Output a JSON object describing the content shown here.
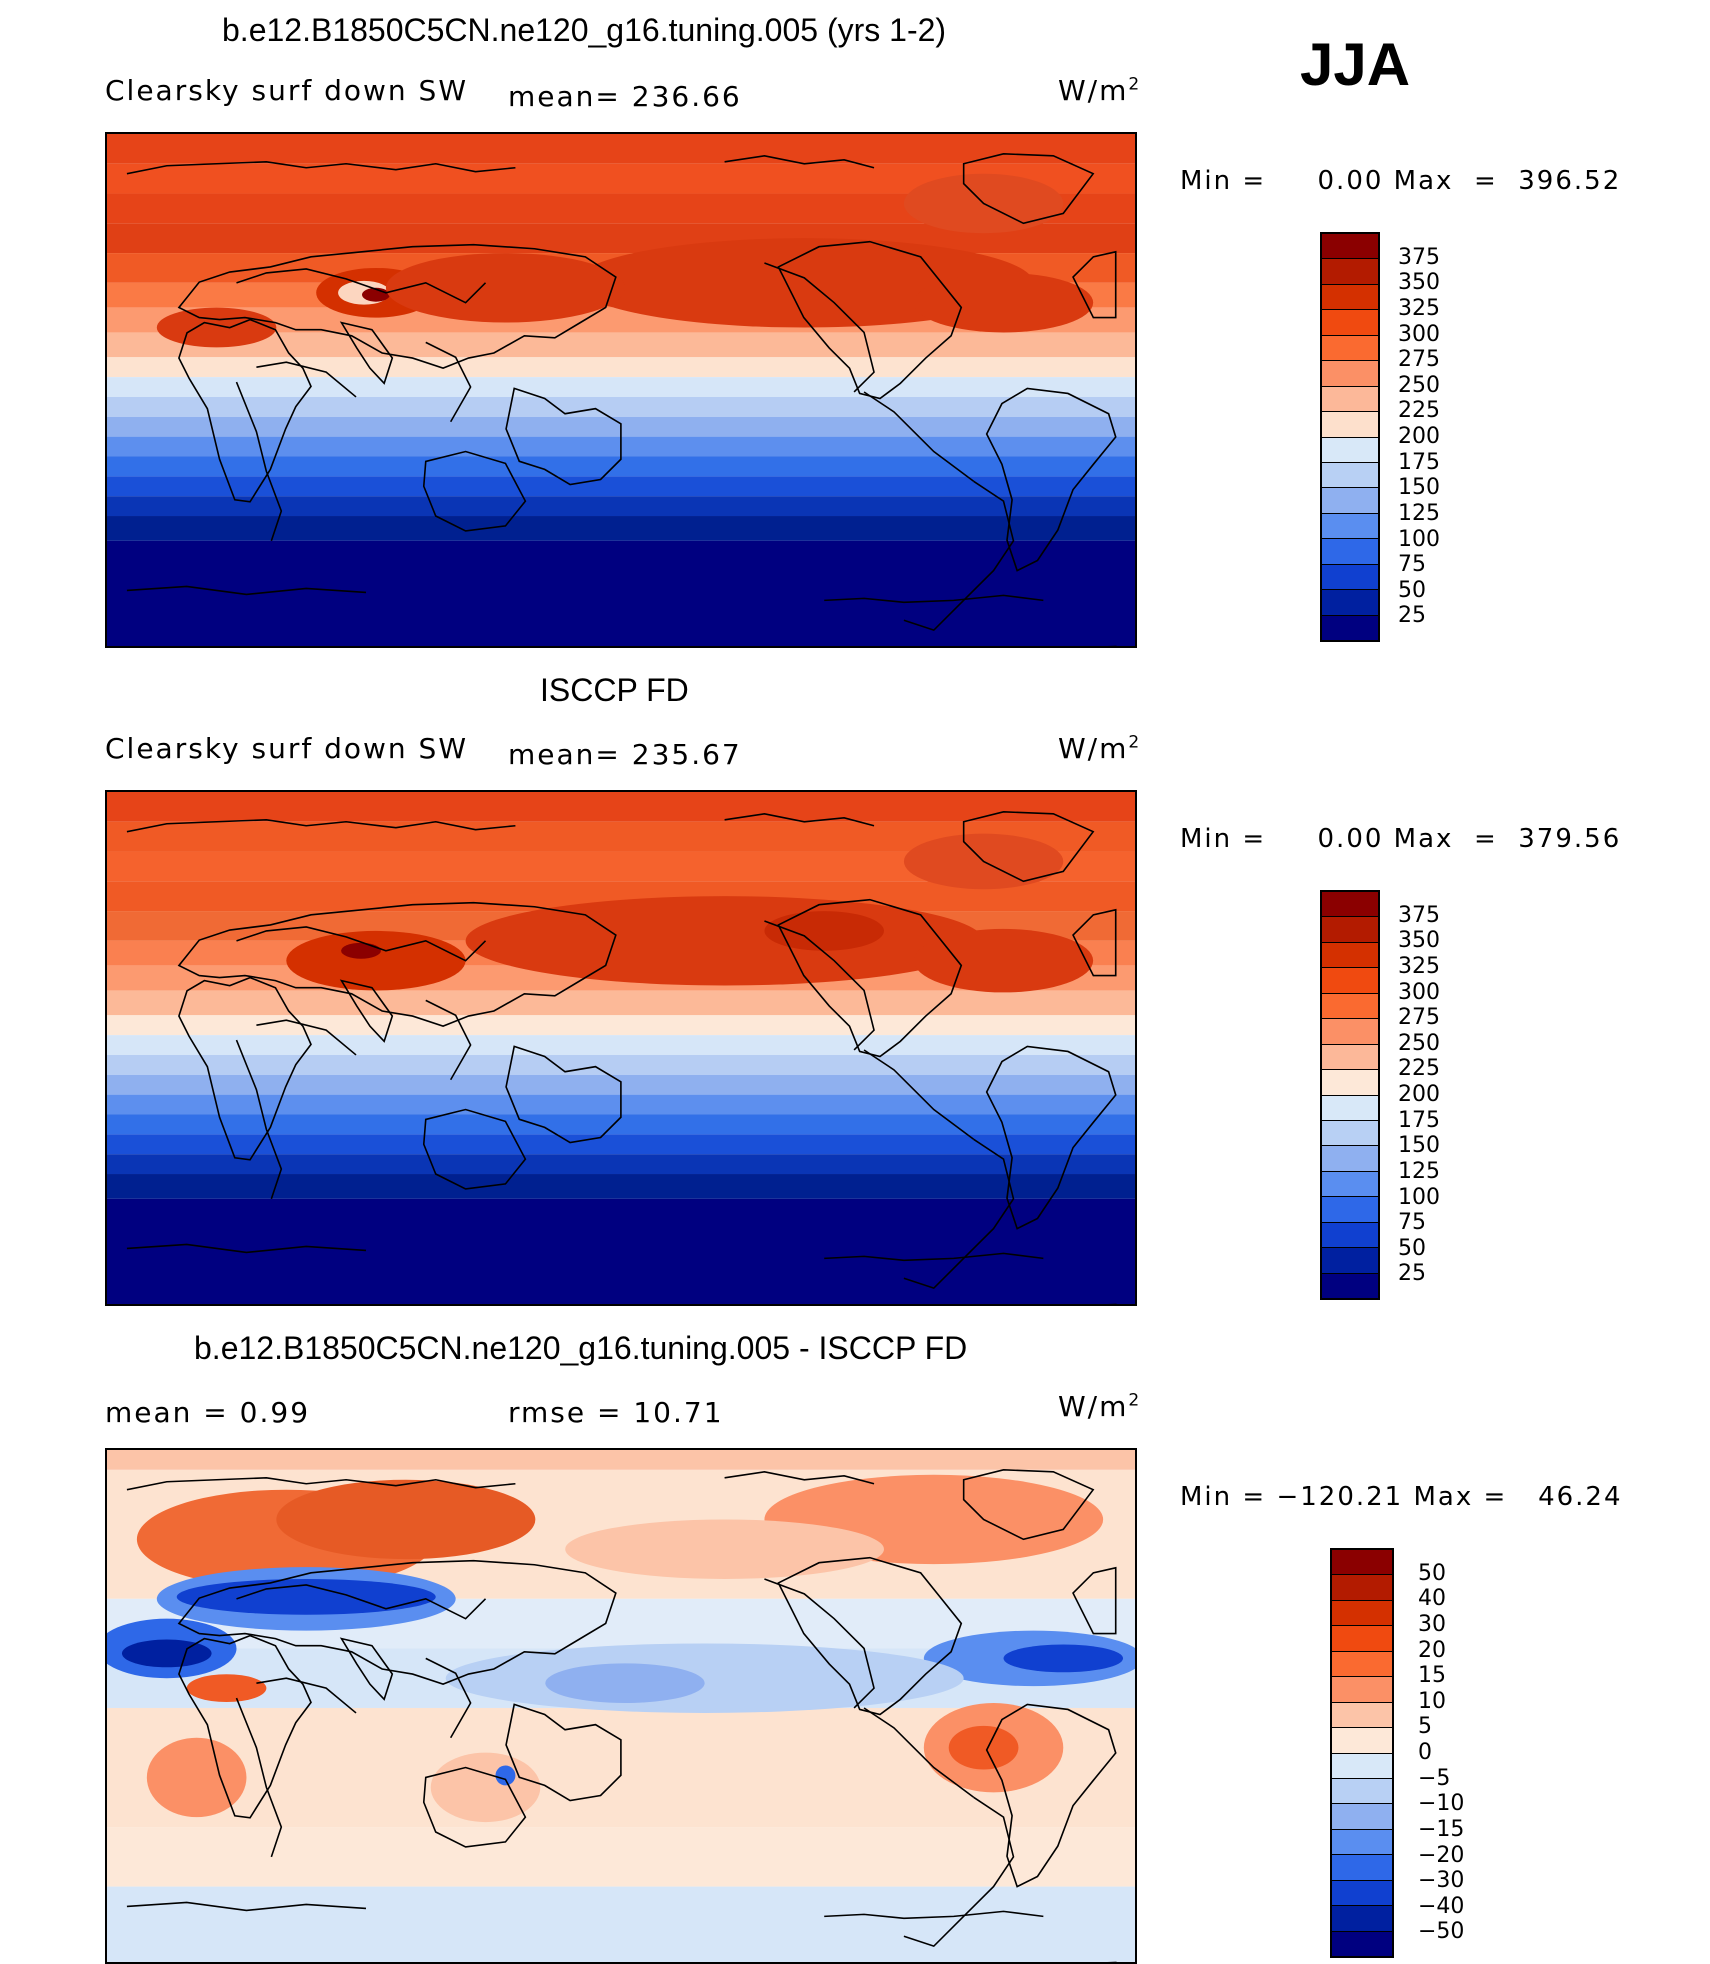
{
  "season": "JJA",
  "panels": [
    {
      "title": "b.e12.B1850C5CN.ne120_g16.tuning.005 (yrs 1-2)",
      "left_label": "Clearsky surf down SW",
      "stat_label": "mean= 236.66",
      "units": "W/m",
      "units_sup": "2",
      "minmax": "Min =     0.00 Max  =  396.52",
      "colorbar_labels": [
        "375",
        "350",
        "325",
        "300",
        "275",
        "250",
        "225",
        "200",
        "175",
        "150",
        "125",
        "100",
        "75",
        "50",
        "25"
      ],
      "colorbar_colors": [
        "#8b0000",
        "#b31b00",
        "#d43000",
        "#f04a10",
        "#fa6a30",
        "#fb9066",
        "#fcb899",
        "#fde0cc",
        "#d8e8f8",
        "#b8d0f4",
        "#8fb0f0",
        "#5a8ef0",
        "#2e68e8",
        "#1040d0",
        "#0020a0",
        "#000080"
      ]
    },
    {
      "title": "ISCCP FD",
      "left_label": "Clearsky surf down SW",
      "stat_label": "mean= 235.67",
      "units": "W/m",
      "units_sup": "2",
      "minmax": "Min =     0.00 Max  =  379.56",
      "colorbar_labels": [
        "375",
        "350",
        "325",
        "300",
        "275",
        "250",
        "225",
        "200",
        "175",
        "150",
        "125",
        "100",
        "75",
        "50",
        "25"
      ],
      "colorbar_colors": [
        "#8b0000",
        "#b31b00",
        "#d43000",
        "#f04a10",
        "#fa6a30",
        "#fb9066",
        "#fcb899",
        "#fde8d8",
        "#d8e8f8",
        "#b8d0f4",
        "#8fb0f0",
        "#5a8ef0",
        "#2e68e8",
        "#1040d0",
        "#0020a0",
        "#000080"
      ]
    },
    {
      "title": "b.e12.B1850C5CN.ne120_g16.tuning.005 - ISCCP FD",
      "left_label": "mean =    0.99",
      "stat_label": "rmse =    10.71",
      "units": "W/m",
      "units_sup": "2",
      "minmax": "Min = −120.21 Max =   46.24",
      "colorbar_labels": [
        "50",
        "40",
        "30",
        "20",
        "15",
        "10",
        "5",
        "0",
        "−5",
        "−10",
        "−15",
        "−20",
        "−30",
        "−40",
        "−50"
      ],
      "colorbar_colors": [
        "#8b0000",
        "#b31b00",
        "#d43000",
        "#f04a10",
        "#fa6a30",
        "#fb9066",
        "#fcc4a8",
        "#fde8d8",
        "#d8e8f8",
        "#b8d0f4",
        "#8fb0f0",
        "#5a8ef0",
        "#2e68e8",
        "#1040d0",
        "#0020a0",
        "#000080"
      ]
    }
  ]
}
